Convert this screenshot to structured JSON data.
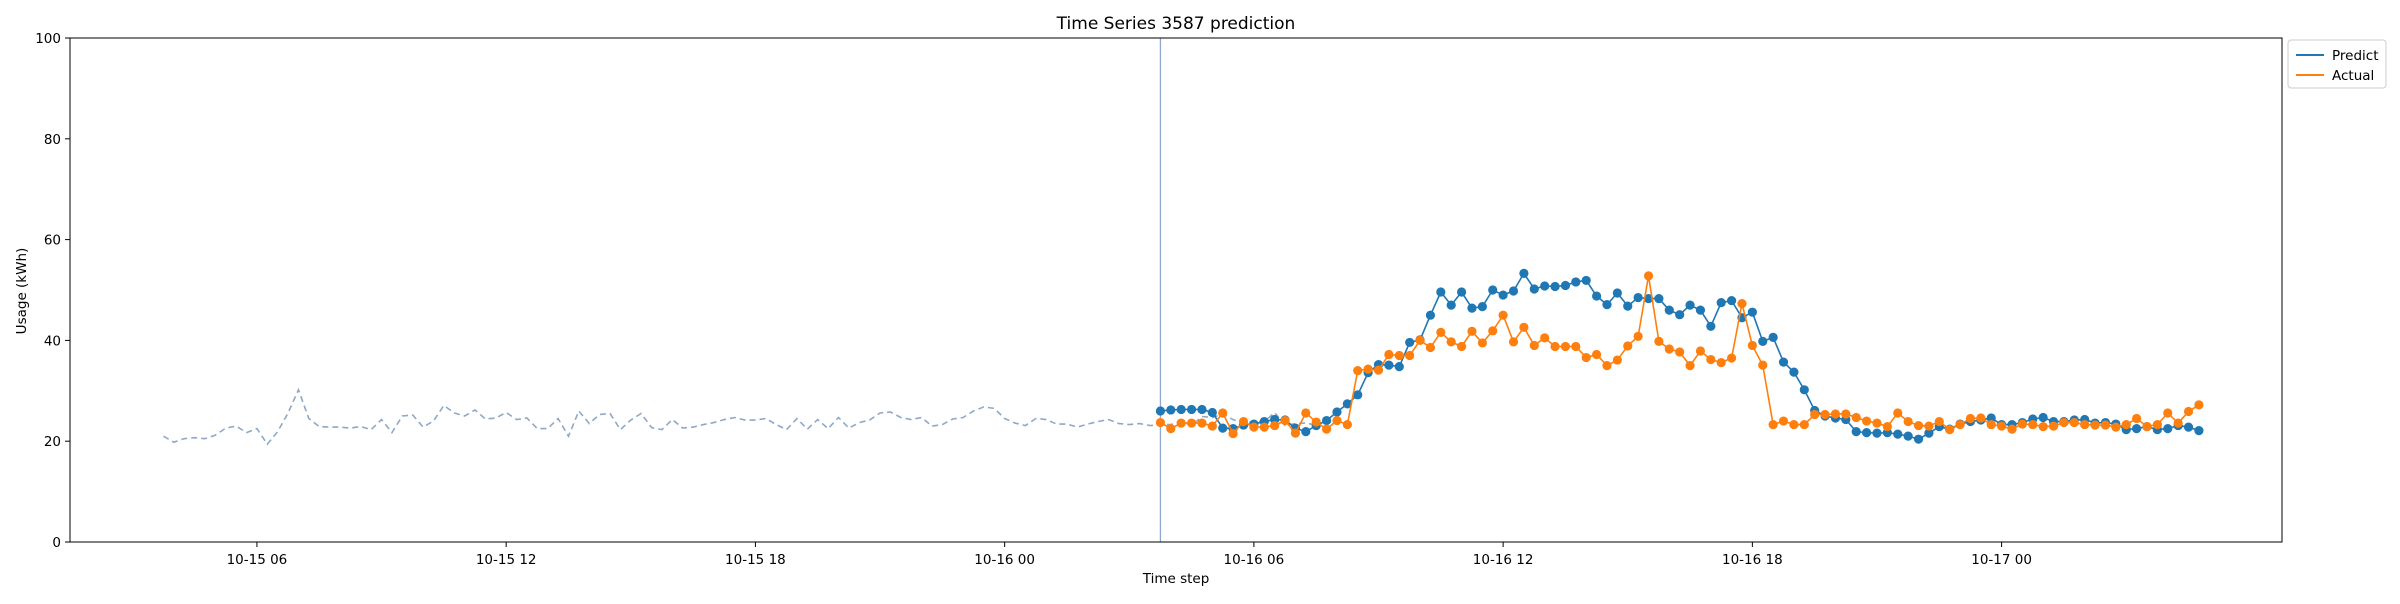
{
  "chart_data": {
    "type": "line",
    "title": "Time Series 3587 prediction",
    "xlabel": "Time step",
    "ylabel": "Usage (kWh)",
    "ylim": [
      0,
      100
    ],
    "yticks": [
      0,
      20,
      40,
      60,
      80,
      100
    ],
    "xlim": [
      "2024-10-15 01:30",
      "2024-10-17 06:45"
    ],
    "xticks": [
      "2024-10-15 06:00",
      "2024-10-15 12:00",
      "2024-10-15 18:00",
      "2024-10-16 00:00",
      "2024-10-16 06:00",
      "2024-10-16 12:00",
      "2024-10-16 18:00",
      "2024-10-17 00:00"
    ],
    "xtick_labels": [
      "10-15 06",
      "10-15 12",
      "10-15 18",
      "10-16 00",
      "10-16 06",
      "10-16 12",
      "10-16 18",
      "10-17 00"
    ],
    "split_time": "2024-10-16 03:45",
    "legend_position": "upper-right-outside",
    "history": {
      "start": "2024-10-15 03:45",
      "step_minutes": 15,
      "color": "#8fa8c8",
      "style": "dashed",
      "values": [
        21.0,
        19.8,
        20.5,
        20.7,
        20.5,
        21.2,
        22.6,
        23.0,
        21.7,
        22.5,
        19.4,
        21.9,
        25.6,
        30.2,
        24.5,
        22.9,
        22.8,
        22.8,
        22.6,
        22.9,
        22.3,
        24.3,
        21.7,
        25.0,
        25.2,
        22.8,
        24.0,
        27.1,
        25.6,
        25.0,
        26.2,
        24.4,
        24.6,
        25.7,
        24.3,
        24.6,
        22.5,
        22.5,
        24.5,
        21.0,
        26.0,
        23.5,
        25.3,
        25.5,
        22.3,
        24.2,
        25.5,
        22.7,
        22.3,
        24.3,
        22.6,
        22.8,
        23.3,
        23.7,
        24.3,
        24.7,
        24.2,
        24.2,
        24.5,
        23.3,
        22.3,
        24.5,
        22.4,
        24.3,
        22.5,
        24.7,
        22.6,
        23.7,
        24.2,
        25.6,
        25.8,
        24.7,
        24.3,
        24.7,
        23.0,
        23.3,
        24.4,
        24.7,
        26.0,
        26.8,
        26.5,
        24.5,
        23.6,
        23.1,
        24.5,
        24.3,
        23.4,
        23.4,
        22.8,
        23.4,
        23.9,
        24.3,
        23.5,
        23.3,
        23.5,
        23.1,
        23.3,
        23.3,
        24.0,
        23.1,
        24.9,
        24.7,
        25.4,
        24.3,
        23.5,
        23.9,
        23.9,
        25.7,
        23.1,
        23.5,
        23.6,
        23.2
      ]
    },
    "series": [
      {
        "name": "Predict",
        "color": "#1f77b4",
        "start": "2024-10-16 03:45",
        "step_minutes": 15,
        "values": [
          26.0,
          26.2,
          26.3,
          26.3,
          26.3,
          25.7,
          22.6,
          22.5,
          23.2,
          23.4,
          23.9,
          24.3,
          24.2,
          22.6,
          21.9,
          23.1,
          24.1,
          25.8,
          27.4,
          29.2,
          33.6,
          35.2,
          35.1,
          34.8,
          39.6,
          40.1,
          45.0,
          49.6,
          47.0,
          49.6,
          46.4,
          46.7,
          50.0,
          49.0,
          49.8,
          53.3,
          50.2,
          50.8,
          50.7,
          50.9,
          51.6,
          51.9,
          48.8,
          47.1,
          49.4,
          46.8,
          48.5,
          48.3,
          48.3,
          46.0,
          45.1,
          47.0,
          46.0,
          42.8,
          47.5,
          47.9,
          44.5,
          45.6,
          39.8,
          40.6,
          35.7,
          33.7,
          30.2,
          26.1,
          25.0,
          24.6,
          24.3,
          21.9,
          21.7,
          21.6,
          21.7,
          21.4,
          21.0,
          20.4,
          21.6,
          22.9,
          22.4,
          23.4,
          23.9,
          24.2,
          24.6,
          23.3,
          23.3,
          23.7,
          24.4,
          24.7,
          23.9,
          23.9,
          24.2,
          24.3,
          23.6,
          23.7,
          23.4,
          22.3,
          22.5,
          22.9,
          22.3,
          22.5,
          23.1,
          22.8,
          22.1
        ]
      },
      {
        "name": "Actual",
        "color": "#ff7f0e",
        "start": "2024-10-16 03:45",
        "step_minutes": 15,
        "values": [
          23.7,
          22.5,
          23.6,
          23.6,
          23.6,
          23.0,
          25.6,
          21.5,
          23.9,
          22.8,
          22.8,
          23.1,
          24.1,
          21.6,
          25.6,
          23.8,
          22.4,
          24.1,
          23.3,
          34.0,
          34.3,
          34.1,
          37.2,
          37.0,
          37.0,
          40.0,
          38.6,
          41.6,
          39.7,
          38.8,
          41.8,
          39.5,
          41.9,
          45.0,
          39.7,
          42.6,
          39.0,
          40.5,
          38.8,
          38.8,
          38.8,
          36.6,
          37.2,
          35.0,
          36.1,
          38.9,
          40.8,
          52.8,
          39.8,
          38.3,
          37.7,
          35.0,
          37.9,
          36.2,
          35.6,
          36.5,
          47.3,
          39.0,
          35.1,
          23.3,
          24.0,
          23.3,
          23.3,
          25.3,
          25.3,
          25.4,
          25.4,
          24.7,
          24.0,
          23.6,
          22.9,
          25.6,
          23.9,
          23.1,
          23.0,
          23.9,
          22.3,
          23.3,
          24.5,
          24.6,
          23.3,
          23.0,
          22.4,
          23.4,
          23.3,
          22.9,
          23.0,
          23.7,
          23.7,
          23.3,
          23.2,
          23.2,
          22.8,
          23.3,
          24.5,
          22.9,
          23.3,
          25.6,
          23.6,
          25.9,
          27.2
        ]
      }
    ]
  }
}
